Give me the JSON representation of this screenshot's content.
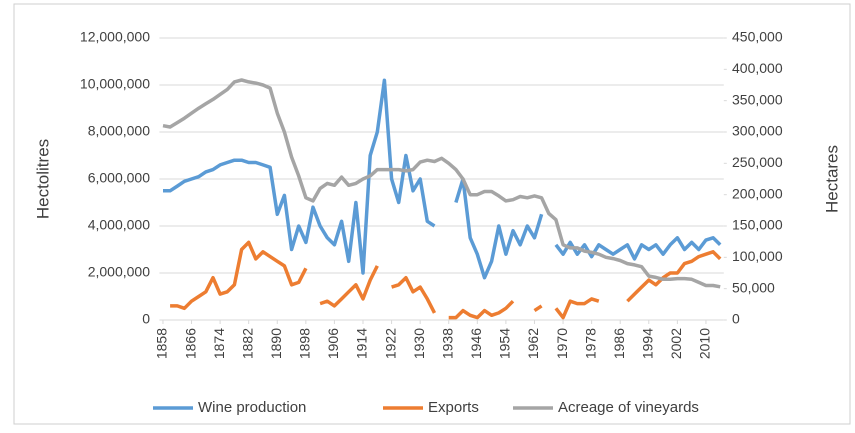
{
  "chart_data": {
    "type": "line",
    "x": [
      1858,
      1860,
      1862,
      1864,
      1866,
      1868,
      1870,
      1872,
      1874,
      1876,
      1878,
      1880,
      1882,
      1884,
      1886,
      1888,
      1890,
      1892,
      1894,
      1896,
      1898,
      1900,
      1902,
      1904,
      1906,
      1908,
      1910,
      1912,
      1914,
      1916,
      1918,
      1920,
      1922,
      1924,
      1926,
      1928,
      1930,
      1932,
      1934,
      1936,
      1938,
      1940,
      1942,
      1944,
      1946,
      1948,
      1950,
      1952,
      1954,
      1956,
      1958,
      1960,
      1962,
      1964,
      1966,
      1968,
      1970,
      1972,
      1974,
      1976,
      1978,
      1980,
      1982,
      1984,
      1986,
      1988,
      1990,
      1992,
      1994,
      1996,
      1998,
      2000,
      2002,
      2004,
      2006,
      2008,
      2010,
      2012,
      2014
    ],
    "series": [
      {
        "name": "Wine production",
        "color": "#5b9bd5",
        "values": [
          5500000,
          5500000,
          5700000,
          5900000,
          6000000,
          6100000,
          6300000,
          6400000,
          6600000,
          6700000,
          6800000,
          6800000,
          6700000,
          6700000,
          6600000,
          6500000,
          4500000,
          5300000,
          3000000,
          4000000,
          3300000,
          4800000,
          4000000,
          3500000,
          3200000,
          4200000,
          2500000,
          5000000,
          2000000,
          7000000,
          8000000,
          10200000,
          6000000,
          5000000,
          7000000,
          5500000,
          6000000,
          4200000,
          4000000,
          null,
          null,
          5000000,
          6000000,
          3500000,
          2800000,
          1800000,
          2500000,
          4000000,
          2800000,
          3800000,
          3200000,
          4000000,
          3500000,
          4500000,
          null,
          3200000,
          2800000,
          3300000,
          2800000,
          3200000,
          2700000,
          3200000,
          3000000,
          2800000,
          3000000,
          3200000,
          2600000,
          3200000,
          3000000,
          3200000,
          2800000,
          3200000,
          3500000,
          3000000,
          3300000,
          3000000,
          3400000,
          3500000,
          3200000
        ]
      },
      {
        "name": "Exports",
        "color": "#ed7d31",
        "values": [
          null,
          600000,
          600000,
          500000,
          800000,
          1000000,
          1200000,
          1800000,
          1100000,
          1200000,
          1500000,
          3000000,
          3300000,
          2600000,
          2900000,
          2700000,
          2500000,
          2300000,
          1500000,
          1600000,
          2200000,
          null,
          700000,
          800000,
          600000,
          900000,
          1200000,
          1500000,
          900000,
          1700000,
          2300000,
          null,
          1400000,
          1500000,
          1800000,
          1200000,
          1400000,
          900000,
          300000,
          null,
          100000,
          100000,
          400000,
          200000,
          100000,
          400000,
          200000,
          300000,
          500000,
          800000,
          null,
          null,
          400000,
          600000,
          null,
          500000,
          100000,
          800000,
          700000,
          700000,
          900000,
          800000,
          null,
          900000,
          null,
          800000,
          1100000,
          1400000,
          1700000,
          1500000,
          1800000,
          2000000,
          2000000,
          2400000,
          2500000,
          2700000,
          2800000,
          2900000,
          2600000
        ]
      },
      {
        "name": "Acreage of vineyards",
        "color": "#a5a5a5",
        "axis": "y2",
        "values": [
          310000,
          308000,
          315000,
          322000,
          330000,
          338000,
          345000,
          352000,
          360000,
          368000,
          380000,
          383000,
          380000,
          378000,
          375000,
          370000,
          330000,
          300000,
          260000,
          230000,
          195000,
          190000,
          210000,
          218000,
          215000,
          228000,
          215000,
          218000,
          225000,
          230000,
          240000,
          240000,
          240000,
          240000,
          238000,
          240000,
          252000,
          255000,
          253000,
          258000,
          250000,
          240000,
          225000,
          200000,
          200000,
          205000,
          205000,
          198000,
          190000,
          192000,
          197000,
          195000,
          198000,
          195000,
          170000,
          160000,
          120000,
          115000,
          115000,
          110000,
          108000,
          105000,
          100000,
          98000,
          95000,
          90000,
          88000,
          85000,
          70000,
          68000,
          65000,
          65000,
          66000,
          66000,
          65000,
          60000,
          55000,
          55000,
          53000
        ]
      }
    ],
    "y_label": "Hectolitres",
    "y2_label": "Hectares",
    "xlim": [
      1857,
      2015
    ],
    "xticks": [
      1858,
      1866,
      1874,
      1882,
      1890,
      1898,
      1906,
      1914,
      1922,
      1930,
      1938,
      1946,
      1954,
      1962,
      1970,
      1978,
      1986,
      1994,
      2002,
      2010
    ],
    "ylim": [
      0,
      12000000
    ],
    "yticks": [
      0,
      {
        "value": 2000000,
        "label": "2,000,000"
      },
      {
        "value": 4000000,
        "label": "4,000,000"
      },
      {
        "value": 6000000,
        "label": "6,000,000"
      },
      {
        "value": 8000000,
        "label": "8,000,000"
      },
      {
        "value": 10000000,
        "label": "10,000,000"
      },
      {
        "value": 12000000,
        "label": "12,000,000"
      }
    ],
    "y2lim": [
      0,
      450000
    ],
    "y2ticks": [
      0,
      {
        "value": 50000,
        "label": "50,000"
      },
      {
        "value": 100000,
        "label": "100,000"
      },
      {
        "value": 150000,
        "label": "150,000"
      },
      {
        "value": 200000,
        "label": "200,000"
      },
      {
        "value": 250000,
        "label": "250,000"
      },
      {
        "value": 300000,
        "label": "300,000"
      },
      {
        "value": 350000,
        "label": "350,000"
      },
      {
        "value": 400000,
        "label": "400,000"
      },
      {
        "value": 450000,
        "label": "450,000"
      }
    ],
    "grid": true
  }
}
